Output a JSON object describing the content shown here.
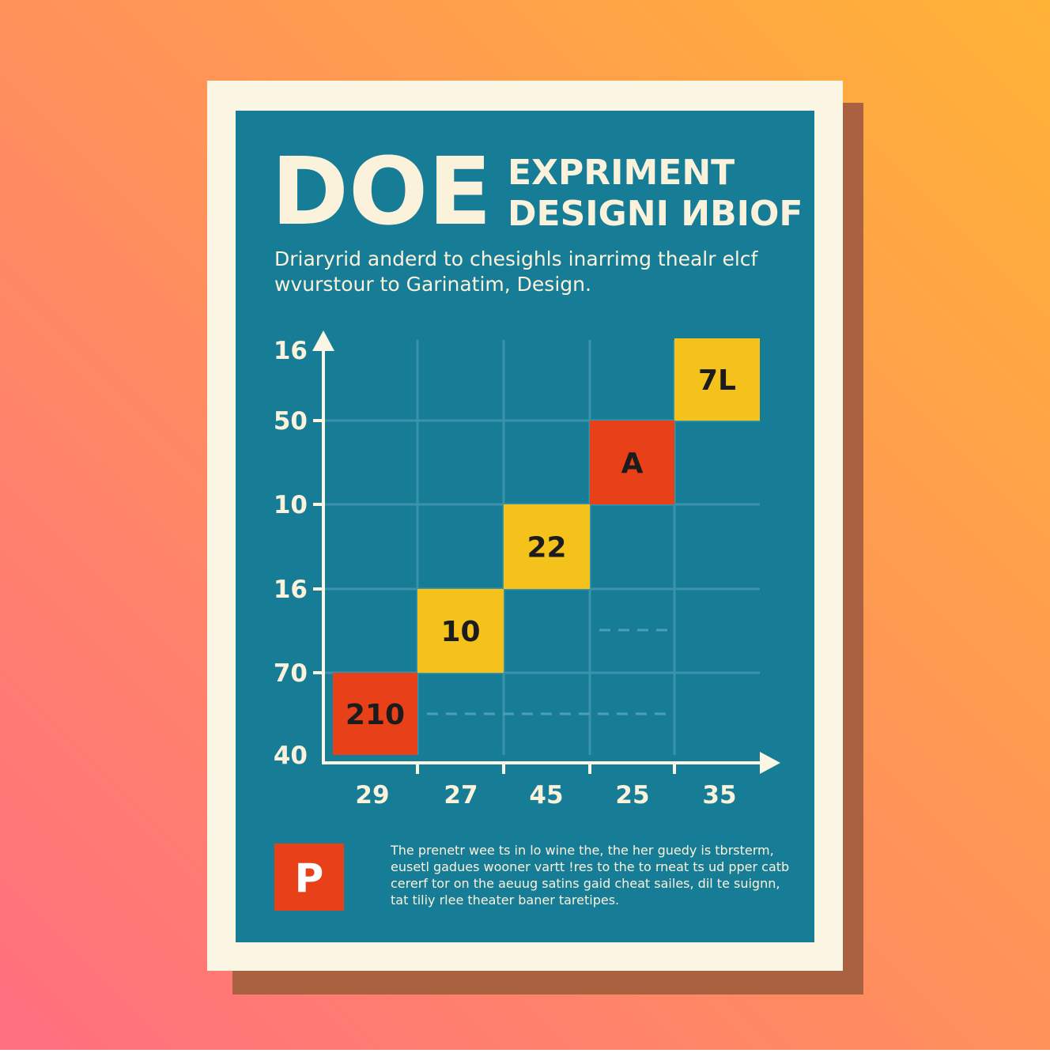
{
  "poster": {
    "title": "DOE",
    "subtitle_lines": [
      "EXPRIMENT",
      "DESIGNI ИBIOF"
    ],
    "description_lines": [
      "Driaryrid anderd to chesighls inarrimg thealr elcf",
      "wvurstour to Garinatim, Design."
    ],
    "diagram": {
      "y_labels": [
        "16",
        "50",
        "10",
        "16",
        "70",
        "40"
      ],
      "x_labels": [
        "29",
        "27",
        "45",
        "25",
        "35"
      ],
      "cells": [
        {
          "label": "210",
          "color": "#e8411a"
        },
        {
          "label": "10",
          "color": "#f5c21b"
        },
        {
          "label": "22",
          "color": "#f5c21b"
        },
        {
          "label": "A",
          "color": "#e8411a"
        },
        {
          "label": "7L",
          "color": "#f5c21b"
        }
      ]
    },
    "badge": "P",
    "footer_lines": [
      "The prenetr wee ts in lo wine the, the her guedy is tbrsterm,",
      "eusetl gadues wooner vartt !res to the to rneat ts ud pper catb",
      "cererf tor on the aeuug satins gaid cheat sailes, dil te suignn,",
      "tat tiliy rlee theater baner taretipes."
    ]
  }
}
